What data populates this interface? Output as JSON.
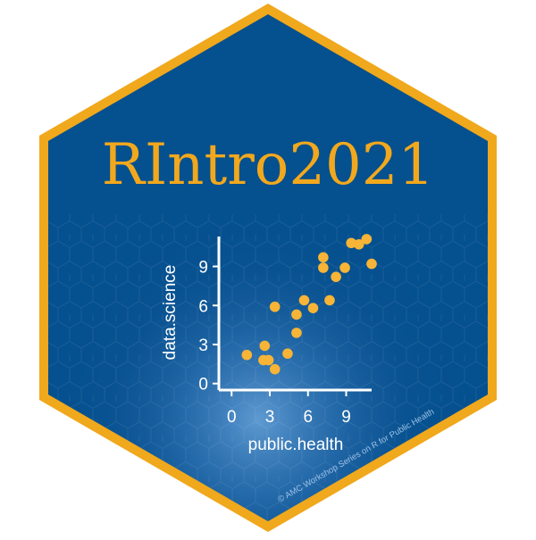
{
  "sticker": {
    "title": "RIntro2021",
    "copyright": "© AMC Workshop Series on R for Public Health",
    "colors": {
      "background": "#05508f",
      "border": "#f0a81c",
      "title": "#f2a81d",
      "points": "#f7b437",
      "axes": "#ffffff",
      "glow": "#6ea7dd"
    }
  },
  "chart_data": {
    "type": "scatter",
    "xlabel": "public.health",
    "ylabel": "data.science",
    "xlim": [
      -1,
      11
    ],
    "ylim": [
      -0.5,
      11.3
    ],
    "xticks": [
      0,
      3,
      6,
      9
    ],
    "yticks": [
      0,
      3,
      6,
      9
    ],
    "grid": false,
    "points": [
      {
        "x": 1.2,
        "y": 2.2
      },
      {
        "x": 2.6,
        "y": 2.9
      },
      {
        "x": 2.5,
        "y": 1.8
      },
      {
        "x": 2.9,
        "y": 1.8
      },
      {
        "x": 3.4,
        "y": 1.1
      },
      {
        "x": 3.4,
        "y": 5.9
      },
      {
        "x": 4.4,
        "y": 2.3
      },
      {
        "x": 5.1,
        "y": 3.9
      },
      {
        "x": 5.1,
        "y": 5.3
      },
      {
        "x": 5.7,
        "y": 6.4
      },
      {
        "x": 6.4,
        "y": 5.8
      },
      {
        "x": 7.2,
        "y": 8.9
      },
      {
        "x": 7.2,
        "y": 9.7
      },
      {
        "x": 7.7,
        "y": 6.4
      },
      {
        "x": 8.2,
        "y": 8.2
      },
      {
        "x": 8.9,
        "y": 8.9
      },
      {
        "x": 9.4,
        "y": 10.8
      },
      {
        "x": 10.0,
        "y": 10.7
      },
      {
        "x": 10.6,
        "y": 11.1
      },
      {
        "x": 11.0,
        "y": 9.2
      }
    ]
  }
}
